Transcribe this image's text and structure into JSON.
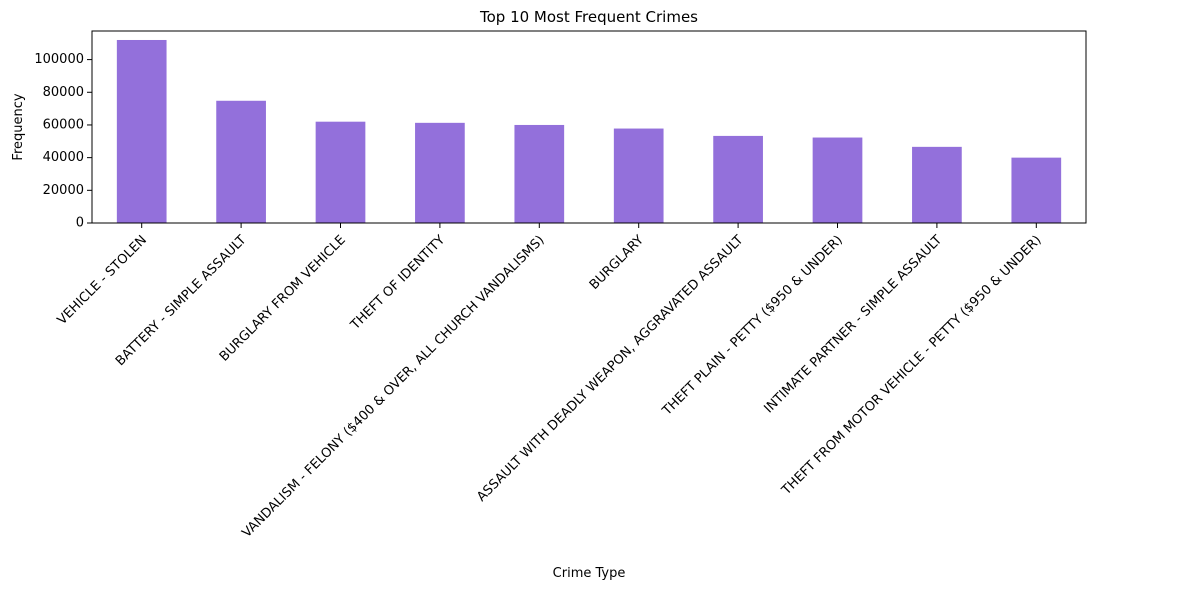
{
  "chart_data": {
    "type": "bar",
    "title": "Top 10 Most Frequent Crimes",
    "xlabel": "Crime Type",
    "ylabel": "Frequency",
    "categories": [
      "VEHICLE - STOLEN",
      "BATTERY - SIMPLE ASSAULT",
      "BURGLARY FROM VEHICLE",
      "THEFT OF IDENTITY",
      "VANDALISM - FELONY ($400 & OVER, ALL CHURCH VANDALISMS)",
      "BURGLARY",
      "ASSAULT WITH DEADLY WEAPON, AGGRAVATED ASSAULT",
      "THEFT PLAIN - PETTY ($950 & UNDER)",
      "INTIMATE PARTNER - SIMPLE ASSAULT",
      "THEFT FROM MOTOR VEHICLE - PETTY ($950 & UNDER)"
    ],
    "values": [
      112000,
      74800,
      62000,
      61300,
      60000,
      57800,
      53300,
      52300,
      46600,
      40000
    ],
    "yticks": [
      0,
      20000,
      40000,
      60000,
      80000,
      100000
    ],
    "ylim": [
      0,
      117500
    ],
    "bar_color": "#9370DB",
    "grid": false,
    "legend": false
  }
}
